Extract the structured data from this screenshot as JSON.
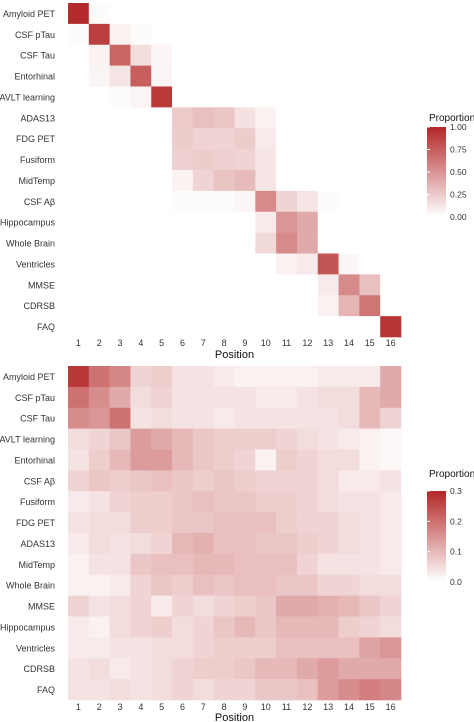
{
  "chart_data": [
    {
      "type": "heatmap",
      "xlabel": "Position",
      "x_categories": [
        "1",
        "2",
        "3",
        "4",
        "5",
        "6",
        "7",
        "8",
        "9",
        "10",
        "11",
        "12",
        "13",
        "14",
        "15",
        "16"
      ],
      "rows": [
        "Amyloid PET",
        "CSF pTau",
        "CSF Tau",
        "Entorhinal",
        "RAVLT learning",
        "ADAS13",
        "FDG PET",
        "Fusiform",
        "MidTemp",
        "CSF Aβ",
        "Hippocampus",
        "Whole Brain",
        "Ventricles",
        "MMSE",
        "CDRSB",
        "FAQ"
      ],
      "values": [
        [
          1.0,
          0.02,
          0,
          0,
          0,
          0,
          0,
          0,
          0,
          0,
          0,
          0,
          0,
          0,
          0,
          0
        ],
        [
          0.02,
          0.9,
          0.06,
          0.02,
          0,
          0,
          0,
          0,
          0,
          0,
          0,
          0,
          0,
          0,
          0,
          0
        ],
        [
          0,
          0.06,
          0.72,
          0.16,
          0.04,
          0,
          0,
          0,
          0,
          0,
          0,
          0,
          0,
          0,
          0,
          0
        ],
        [
          0,
          0.05,
          0.12,
          0.75,
          0.05,
          0,
          0,
          0,
          0,
          0,
          0,
          0,
          0,
          0,
          0,
          0
        ],
        [
          0,
          0,
          0.02,
          0.05,
          0.93,
          0,
          0,
          0,
          0,
          0,
          0,
          0,
          0,
          0,
          0,
          0
        ],
        [
          0,
          0,
          0,
          0,
          0,
          0.25,
          0.3,
          0.27,
          0.14,
          0.06,
          0,
          0,
          0,
          0,
          0,
          0
        ],
        [
          0,
          0,
          0,
          0,
          0,
          0.24,
          0.2,
          0.2,
          0.24,
          0.1,
          0,
          0,
          0,
          0,
          0,
          0
        ],
        [
          0,
          0,
          0,
          0,
          0,
          0.22,
          0.24,
          0.22,
          0.2,
          0.12,
          0,
          0,
          0,
          0,
          0,
          0
        ],
        [
          0,
          0,
          0,
          0,
          0,
          0.06,
          0.2,
          0.28,
          0.32,
          0.12,
          0,
          0,
          0,
          0,
          0,
          0
        ],
        [
          0,
          0,
          0,
          0,
          0,
          0.02,
          0.02,
          0.02,
          0.04,
          0.55,
          0.2,
          0.12,
          0.02,
          0,
          0,
          0
        ],
        [
          0,
          0,
          0,
          0,
          0,
          0,
          0,
          0,
          0,
          0.1,
          0.5,
          0.4,
          0,
          0,
          0,
          0
        ],
        [
          0,
          0,
          0,
          0,
          0,
          0,
          0,
          0,
          0,
          0.18,
          0.55,
          0.4,
          0,
          0,
          0,
          0
        ],
        [
          0,
          0,
          0,
          0,
          0,
          0,
          0,
          0,
          0,
          0,
          0.06,
          0.1,
          0.8,
          0.04,
          0,
          0
        ],
        [
          0,
          0,
          0,
          0,
          0,
          0,
          0,
          0,
          0,
          0,
          0,
          0,
          0.1,
          0.55,
          0.3,
          0
        ],
        [
          0,
          0,
          0,
          0,
          0,
          0,
          0,
          0,
          0,
          0,
          0,
          0,
          0.06,
          0.35,
          0.65,
          0
        ],
        [
          0,
          0,
          0,
          0,
          0,
          0,
          0,
          0,
          0,
          0,
          0,
          0,
          0,
          0,
          0,
          0.95
        ]
      ],
      "legend": {
        "title": "Proportion",
        "ticks": [
          "0.00",
          "0.25",
          "0.50",
          "0.75",
          "1.00"
        ],
        "min": 0,
        "max": 1.0,
        "placement": "right"
      }
    },
    {
      "type": "heatmap",
      "xlabel": "Position",
      "x_categories": [
        "1",
        "2",
        "3",
        "4",
        "5",
        "6",
        "7",
        "8",
        "9",
        "10",
        "11",
        "12",
        "13",
        "14",
        "15",
        "16"
      ],
      "rows": [
        "Amyloid PET",
        "CSF pTau",
        "CSF Tau",
        "RAVLT learning",
        "Entorhinal",
        "CSF Aβ",
        "Fusiform",
        "FDG PET",
        "ADAS13",
        "MidTemp",
        "Whole Brain",
        "MMSE",
        "Hippocampus",
        "Ventricles",
        "CDRSB",
        "FAQ"
      ],
      "values": [
        [
          0.28,
          0.2,
          0.17,
          0.06,
          0.07,
          0.04,
          0.04,
          0.03,
          0.02,
          0.02,
          0.02,
          0.02,
          0.03,
          0.03,
          0.03,
          0.12
        ],
        [
          0.2,
          0.16,
          0.12,
          0.05,
          0.06,
          0.04,
          0.04,
          0.04,
          0.04,
          0.03,
          0.03,
          0.04,
          0.05,
          0.05,
          0.1,
          0.12
        ],
        [
          0.16,
          0.15,
          0.2,
          0.04,
          0.05,
          0.04,
          0.04,
          0.03,
          0.04,
          0.04,
          0.04,
          0.04,
          0.04,
          0.05,
          0.1,
          0.06
        ],
        [
          0.05,
          0.06,
          0.08,
          0.14,
          0.12,
          0.1,
          0.08,
          0.07,
          0.07,
          0.07,
          0.06,
          0.05,
          0.04,
          0.03,
          0.02,
          0.01
        ],
        [
          0.04,
          0.07,
          0.1,
          0.14,
          0.14,
          0.1,
          0.08,
          0.07,
          0.06,
          0.02,
          0.07,
          0.06,
          0.05,
          0.05,
          0.02,
          0.01
        ],
        [
          0.06,
          0.08,
          0.07,
          0.08,
          0.09,
          0.08,
          0.07,
          0.08,
          0.07,
          0.06,
          0.06,
          0.06,
          0.05,
          0.03,
          0.03,
          0.04
        ],
        [
          0.03,
          0.04,
          0.06,
          0.07,
          0.07,
          0.08,
          0.09,
          0.08,
          0.08,
          0.07,
          0.07,
          0.06,
          0.05,
          0.04,
          0.04,
          0.03
        ],
        [
          0.04,
          0.05,
          0.05,
          0.07,
          0.07,
          0.08,
          0.08,
          0.09,
          0.09,
          0.09,
          0.07,
          0.06,
          0.06,
          0.05,
          0.04,
          0.03
        ],
        [
          0.03,
          0.05,
          0.04,
          0.05,
          0.06,
          0.1,
          0.11,
          0.09,
          0.09,
          0.08,
          0.08,
          0.07,
          0.06,
          0.05,
          0.04,
          0.03
        ],
        [
          0.02,
          0.04,
          0.04,
          0.08,
          0.09,
          0.09,
          0.1,
          0.1,
          0.09,
          0.09,
          0.09,
          0.06,
          0.04,
          0.04,
          0.04,
          0.03
        ],
        [
          0.02,
          0.02,
          0.03,
          0.06,
          0.08,
          0.07,
          0.09,
          0.08,
          0.09,
          0.09,
          0.08,
          0.08,
          0.06,
          0.06,
          0.05,
          0.05
        ],
        [
          0.06,
          0.04,
          0.05,
          0.06,
          0.03,
          0.06,
          0.05,
          0.06,
          0.07,
          0.08,
          0.12,
          0.12,
          0.11,
          0.1,
          0.08,
          0.06
        ],
        [
          0.03,
          0.02,
          0.05,
          0.06,
          0.07,
          0.05,
          0.06,
          0.08,
          0.1,
          0.08,
          0.1,
          0.1,
          0.1,
          0.07,
          0.06,
          0.05
        ],
        [
          0.03,
          0.03,
          0.04,
          0.04,
          0.05,
          0.05,
          0.06,
          0.07,
          0.07,
          0.07,
          0.09,
          0.09,
          0.09,
          0.09,
          0.13,
          0.15
        ],
        [
          0.04,
          0.05,
          0.03,
          0.04,
          0.05,
          0.06,
          0.07,
          0.07,
          0.08,
          0.1,
          0.1,
          0.12,
          0.14,
          0.12,
          0.12,
          0.12
        ],
        [
          0.04,
          0.04,
          0.05,
          0.04,
          0.05,
          0.06,
          0.05,
          0.06,
          0.06,
          0.08,
          0.08,
          0.09,
          0.14,
          0.16,
          0.18,
          0.17
        ]
      ],
      "legend": {
        "title": "Proportion",
        "ticks": [
          "0.0",
          "0.1",
          "0.2",
          "0.3"
        ],
        "min": 0,
        "max": 0.3,
        "placement": "right"
      }
    }
  ],
  "colors": {
    "low": "#ffffff",
    "high": "#b52a2a",
    "axis_text": "#333333"
  }
}
